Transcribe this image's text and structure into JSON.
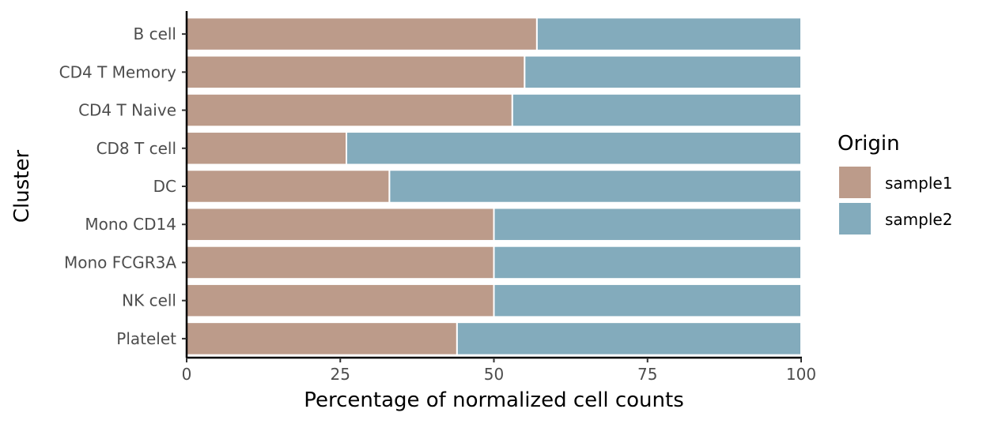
{
  "chart_data": {
    "type": "bar",
    "orientation": "horizontal",
    "stacked": true,
    "categories": [
      "B cell",
      "CD4 T Memory",
      "CD4 T Naive",
      "CD8 T cell",
      "DC",
      "Mono CD14",
      "Mono FCGR3A",
      "NK cell",
      "Platelet"
    ],
    "series": [
      {
        "name": "sample1",
        "color": "#bc9b8a",
        "values": [
          57,
          55,
          53,
          26,
          33,
          50,
          50,
          50,
          44
        ]
      },
      {
        "name": "sample2",
        "color": "#83abbc",
        "values": [
          43,
          45,
          47,
          74,
          67,
          50,
          50,
          50,
          56
        ]
      }
    ],
    "xlabel": "Percentage of normalized cell counts",
    "ylabel": "Cluster",
    "xlim": [
      0,
      100
    ],
    "xticks": [
      0,
      25,
      50,
      75,
      100
    ],
    "xtick_labels": [
      "0",
      "25",
      "50",
      "75",
      "100"
    ],
    "grid": false,
    "legend": {
      "title": "Origin",
      "position": "right"
    }
  }
}
